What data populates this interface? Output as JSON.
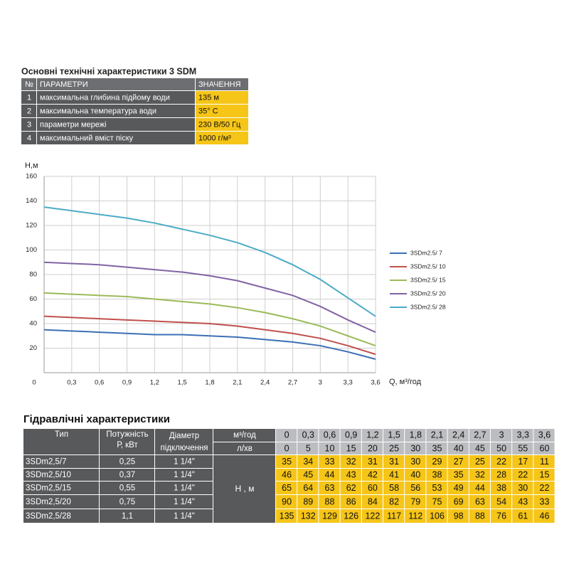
{
  "spec_table": {
    "title": "Основні технічні характеристики 3 SDM",
    "header": [
      "№",
      "ПАРАМЕТРИ",
      "ЗНАЧЕННЯ"
    ],
    "rows": [
      [
        "1",
        "максимальна глибина підйому води",
        "135 м"
      ],
      [
        "2",
        "максимальна температура води",
        "35° С"
      ],
      [
        "3",
        "параметри мережі",
        "230 В/50 Гц"
      ],
      [
        "4",
        "максимальний вміст піску",
        "1000 г/м³"
      ]
    ]
  },
  "chart_data": {
    "type": "line",
    "y_label": "H,м",
    "x_label": "Q,  м³/год",
    "x": [
      0,
      0.3,
      0.6,
      0.9,
      1.2,
      1.5,
      1.8,
      2.1,
      2.4,
      2.7,
      3,
      3.3,
      3.6
    ],
    "xlim": [
      0,
      3.6
    ],
    "ylim": [
      0,
      160
    ],
    "xticks": [
      0,
      {
        "value": 0.3,
        "label": "0,3"
      },
      {
        "value": 0.6,
        "label": "0,6"
      },
      {
        "value": 0.9,
        "label": "0,9"
      },
      {
        "value": 1.2,
        "label": "1,2"
      },
      {
        "value": 1.5,
        "label": "1,5"
      },
      {
        "value": 1.8,
        "label": "1,8"
      },
      {
        "value": 2.1,
        "label": "2,1"
      },
      {
        "value": 2.4,
        "label": "2,4"
      },
      {
        "value": 2.7,
        "label": "2,7"
      },
      3,
      {
        "value": 3.3,
        "label": "3,3"
      },
      {
        "value": 3.6,
        "label": "3,6"
      }
    ],
    "yticks": [
      20,
      40,
      60,
      80,
      100,
      120,
      140,
      160
    ],
    "grid": true,
    "legend": "right",
    "series": [
      {
        "name": "3SDm2.5/ 7",
        "color": "#3c6fb6",
        "values": [
          35,
          34,
          33,
          32,
          31,
          31,
          30,
          29,
          27,
          25,
          22,
          17,
          11
        ]
      },
      {
        "name": "3SDm2.5/ 10",
        "color": "#c0504d",
        "values": [
          46,
          45,
          44,
          43,
          42,
          41,
          40,
          38,
          35,
          32,
          28,
          22,
          15
        ]
      },
      {
        "name": "3SDm2.5/ 15",
        "color": "#9bbb59",
        "values": [
          65,
          64,
          63,
          62,
          60,
          58,
          56,
          53,
          49,
          44,
          38,
          30,
          22
        ]
      },
      {
        "name": "3SDm2.5/ 20",
        "color": "#8064a2",
        "values": [
          90,
          89,
          88,
          86,
          84,
          82,
          79,
          75,
          69,
          63,
          54,
          43,
          33
        ]
      },
      {
        "name": "3SDm2.5/ 28",
        "color": "#4bacc6",
        "values": [
          135,
          132,
          129,
          126,
          122,
          117,
          112,
          106,
          98,
          88,
          76,
          61,
          46
        ]
      }
    ]
  },
  "hydraulic_table": {
    "title": "Гідравлічні характеристики",
    "header_type": "Тип",
    "header_power": [
      "Потужність",
      "Р, кВт"
    ],
    "header_diameter": [
      "Діаметр",
      "підключення"
    ],
    "q_unit": "м³/год",
    "l_unit": "л/хв",
    "h_unit": "Н , м",
    "q_m3h": [
      "0",
      "0,3",
      "0,6",
      "0,9",
      "1,2",
      "1,5",
      "1,8",
      "2,1",
      "2,4",
      "2,7",
      "3",
      "3,3",
      "3,6"
    ],
    "q_lmin": [
      "0",
      "5",
      "10",
      "15",
      "20",
      "25",
      "30",
      "35",
      "40",
      "45",
      "50",
      "55",
      "60"
    ],
    "types": [
      "3SDm2,5/7",
      "3SDm2,5/10",
      "3SDm2,5/15",
      "3SDm2,5/20",
      "3SDm2,5/28"
    ],
    "power": [
      "0,25",
      "0,37",
      "0,55",
      "0,75",
      "1,1"
    ],
    "diameter": [
      "1 1/4\"",
      "1 1/4\"",
      "1 1/4\"",
      "1 1/4\"",
      "1 1/4\""
    ]
  }
}
